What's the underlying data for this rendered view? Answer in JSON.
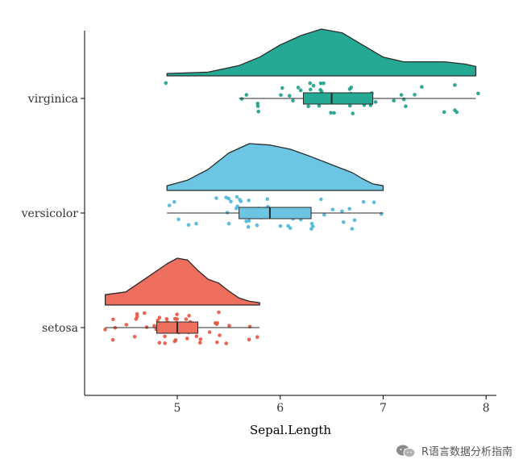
{
  "chart_data": {
    "type": "raincloud",
    "xlabel": "Sepal.Length",
    "ylabel": "",
    "xlim": [
      4.1,
      8.1
    ],
    "xticks": [
      5,
      6,
      7,
      8
    ],
    "grid": false,
    "legend": "none",
    "categories": [
      "setosa",
      "versicolor",
      "virginica"
    ],
    "series": [
      {
        "category": "setosa",
        "color": "#EE6F5E",
        "pointColor": "#E8553F",
        "range": [
          4.3,
          5.8
        ],
        "box": {
          "q1": 4.8,
          "median": 5.0,
          "q3": 5.2,
          "whiskerLow": 4.3,
          "whiskerHigh": 5.8
        },
        "density": [
          [
            4.3,
            0.22
          ],
          [
            4.5,
            0.28
          ],
          [
            4.7,
            0.58
          ],
          [
            4.9,
            0.88
          ],
          [
            5.0,
            1.0
          ],
          [
            5.1,
            0.96
          ],
          [
            5.2,
            0.74
          ],
          [
            5.3,
            0.55
          ],
          [
            5.4,
            0.47
          ],
          [
            5.5,
            0.3
          ],
          [
            5.6,
            0.15
          ],
          [
            5.7,
            0.08
          ],
          [
            5.8,
            0.05
          ]
        ],
        "points": [
          4.3,
          4.4,
          4.4,
          4.4,
          4.5,
          4.6,
          4.6,
          4.6,
          4.6,
          4.7,
          4.7,
          4.8,
          4.8,
          4.8,
          4.8,
          4.8,
          4.9,
          4.9,
          4.9,
          4.9,
          5.0,
          5.0,
          5.0,
          5.0,
          5.0,
          5.0,
          5.0,
          5.0,
          5.1,
          5.1,
          5.1,
          5.1,
          5.1,
          5.1,
          5.1,
          5.1,
          5.2,
          5.2,
          5.2,
          5.3,
          5.4,
          5.4,
          5.4,
          5.4,
          5.4,
          5.4,
          5.5,
          5.5,
          5.7,
          5.7,
          5.8
        ]
      },
      {
        "category": "versicolor",
        "color": "#6CC5E2",
        "pointColor": "#4CB6D9",
        "range": [
          4.9,
          7.0
        ],
        "box": {
          "q1": 5.6,
          "median": 5.9,
          "q3": 6.3,
          "whiskerLow": 4.9,
          "whiskerHigh": 7.0
        },
        "density": [
          [
            4.9,
            0.1
          ],
          [
            5.1,
            0.22
          ],
          [
            5.3,
            0.45
          ],
          [
            5.5,
            0.8
          ],
          [
            5.7,
            1.0
          ],
          [
            5.9,
            0.97
          ],
          [
            6.1,
            0.88
          ],
          [
            6.3,
            0.72
          ],
          [
            6.5,
            0.55
          ],
          [
            6.7,
            0.38
          ],
          [
            6.8,
            0.25
          ],
          [
            6.9,
            0.14
          ],
          [
            7.0,
            0.1
          ]
        ],
        "points": [
          4.9,
          5.0,
          5.0,
          5.1,
          5.2,
          5.4,
          5.5,
          5.5,
          5.5,
          5.5,
          5.5,
          5.6,
          5.6,
          5.6,
          5.6,
          5.6,
          5.7,
          5.7,
          5.7,
          5.7,
          5.7,
          5.8,
          5.8,
          5.8,
          5.9,
          5.9,
          6.0,
          6.0,
          6.0,
          6.0,
          6.1,
          6.1,
          6.1,
          6.1,
          6.2,
          6.2,
          6.3,
          6.3,
          6.3,
          6.4,
          6.4,
          6.5,
          6.6,
          6.6,
          6.7,
          6.7,
          6.7,
          6.8,
          6.9,
          7.0
        ]
      },
      {
        "category": "virginica",
        "color": "#26A994",
        "pointColor": "#1B9E87",
        "range": [
          4.9,
          7.9
        ],
        "box": {
          "q1": 6.225,
          "median": 6.5,
          "q3": 6.9,
          "whiskerLow": 5.6,
          "whiskerHigh": 7.9
        },
        "density": [
          [
            4.9,
            0.05
          ],
          [
            5.3,
            0.08
          ],
          [
            5.6,
            0.22
          ],
          [
            5.8,
            0.4
          ],
          [
            6.0,
            0.66
          ],
          [
            6.2,
            0.86
          ],
          [
            6.4,
            1.0
          ],
          [
            6.6,
            0.92
          ],
          [
            6.8,
            0.66
          ],
          [
            7.0,
            0.4
          ],
          [
            7.2,
            0.3
          ],
          [
            7.4,
            0.3
          ],
          [
            7.6,
            0.3
          ],
          [
            7.8,
            0.25
          ],
          [
            7.9,
            0.2
          ]
        ],
        "points": [
          4.9,
          5.6,
          5.7,
          5.8,
          5.8,
          5.8,
          6.0,
          6.0,
          6.1,
          6.1,
          6.2,
          6.2,
          6.3,
          6.3,
          6.3,
          6.3,
          6.3,
          6.3,
          6.4,
          6.4,
          6.4,
          6.4,
          6.4,
          6.5,
          6.5,
          6.5,
          6.5,
          6.5,
          6.7,
          6.7,
          6.7,
          6.7,
          6.7,
          6.8,
          6.8,
          6.8,
          6.9,
          6.9,
          6.9,
          7.1,
          7.2,
          7.2,
          7.2,
          7.3,
          7.4,
          7.6,
          7.7,
          7.7,
          7.7,
          7.9
        ]
      }
    ]
  },
  "watermark": {
    "text": "R语言数据分析指南",
    "icon": "wechat-icon"
  }
}
